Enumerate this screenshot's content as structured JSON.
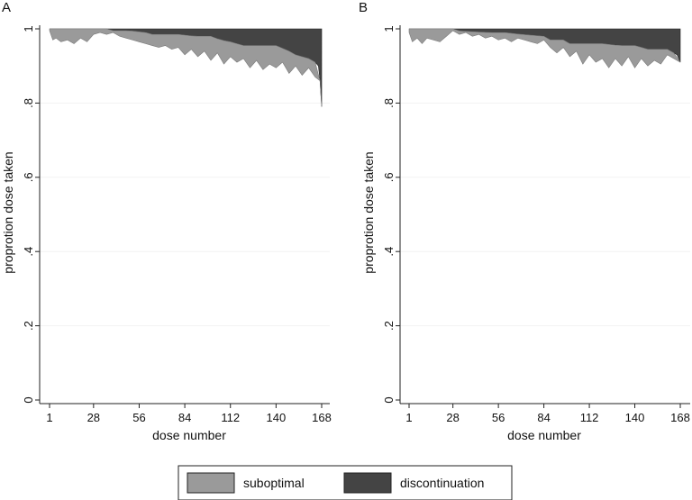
{
  "chart_data": [
    {
      "type": "area",
      "panel": "A",
      "xlabel": "dose number",
      "ylabel": "proprotion dose taken",
      "x_ticks": [
        1,
        28,
        56,
        84,
        112,
        140,
        168
      ],
      "y_ticks": [
        0,
        0.2,
        0.4,
        0.6,
        0.8,
        1
      ],
      "y_tick_labels": [
        "0",
        ".2",
        ".4",
        ".6",
        ".8",
        "1"
      ],
      "xlim": [
        1,
        168
      ],
      "ylim": [
        0,
        1
      ],
      "series": [
        {
          "name": "discontinuation",
          "x": [
            1,
            10,
            20,
            28,
            36,
            37,
            50,
            60,
            62,
            80,
            90,
            100,
            106,
            112,
            120,
            140,
            148,
            152,
            156,
            160,
            164,
            166,
            167,
            168
          ],
          "values": [
            1,
            1,
            1,
            1,
            1,
            0.995,
            0.995,
            0.99,
            0.985,
            0.985,
            0.98,
            0.98,
            0.97,
            0.965,
            0.955,
            0.955,
            0.94,
            0.93,
            0.925,
            0.92,
            0.91,
            0.9,
            0.86,
            0.79
          ]
        },
        {
          "name": "suboptimal",
          "x": [
            1,
            3,
            5,
            8,
            12,
            16,
            20,
            24,
            28,
            32,
            36,
            40,
            44,
            48,
            52,
            56,
            60,
            64,
            68,
            72,
            76,
            80,
            84,
            88,
            92,
            96,
            100,
            104,
            108,
            112,
            116,
            120,
            124,
            128,
            132,
            136,
            140,
            144,
            148,
            152,
            156,
            160,
            164,
            167,
            168
          ],
          "values": [
            0.995,
            0.97,
            0.975,
            0.965,
            0.97,
            0.96,
            0.975,
            0.965,
            0.985,
            0.99,
            0.985,
            0.99,
            0.98,
            0.975,
            0.97,
            0.965,
            0.96,
            0.955,
            0.95,
            0.955,
            0.945,
            0.95,
            0.93,
            0.945,
            0.925,
            0.94,
            0.915,
            0.935,
            0.905,
            0.925,
            0.91,
            0.92,
            0.895,
            0.915,
            0.89,
            0.905,
            0.895,
            0.91,
            0.88,
            0.9,
            0.875,
            0.895,
            0.87,
            0.88,
            0.79
          ]
        }
      ]
    },
    {
      "type": "area",
      "panel": "B",
      "xlabel": "dose number",
      "ylabel": "proprotion dose taken",
      "x_ticks": [
        1,
        28,
        56,
        84,
        112,
        140,
        168
      ],
      "y_ticks": [
        0,
        0.2,
        0.4,
        0.6,
        0.8,
        1
      ],
      "y_tick_labels": [
        "0",
        ".2",
        ".4",
        ".6",
        ".8",
        "1"
      ],
      "xlim": [
        1,
        168
      ],
      "ylim": [
        0,
        1
      ],
      "series": [
        {
          "name": "discontinuation",
          "x": [
            1,
            10,
            20,
            28,
            29,
            50,
            60,
            70,
            84,
            85,
            96,
            100,
            110,
            120,
            130,
            140,
            148,
            160,
            162,
            166,
            168
          ],
          "values": [
            1,
            1,
            1,
            1,
            0.995,
            0.99,
            0.99,
            0.985,
            0.98,
            0.97,
            0.97,
            0.96,
            0.96,
            0.96,
            0.955,
            0.955,
            0.945,
            0.945,
            0.94,
            0.93,
            0.91
          ]
        },
        {
          "name": "suboptimal",
          "x": [
            1,
            3,
            6,
            9,
            12,
            16,
            20,
            24,
            28,
            32,
            36,
            40,
            44,
            48,
            52,
            56,
            60,
            64,
            68,
            72,
            76,
            80,
            84,
            88,
            92,
            96,
            100,
            104,
            108,
            112,
            116,
            120,
            124,
            128,
            132,
            136,
            140,
            144,
            148,
            152,
            156,
            160,
            164,
            168
          ],
          "values": [
            0.99,
            0.965,
            0.975,
            0.96,
            0.975,
            0.97,
            0.965,
            0.98,
            0.995,
            0.985,
            0.99,
            0.98,
            0.985,
            0.975,
            0.98,
            0.97,
            0.975,
            0.965,
            0.975,
            0.97,
            0.965,
            0.96,
            0.97,
            0.95,
            0.935,
            0.95,
            0.925,
            0.94,
            0.905,
            0.93,
            0.91,
            0.92,
            0.895,
            0.92,
            0.9,
            0.925,
            0.895,
            0.92,
            0.9,
            0.915,
            0.905,
            0.93,
            0.92,
            0.91
          ]
        }
      ]
    }
  ],
  "legend": {
    "items": [
      {
        "label": "suboptimal",
        "color": "#9a9a9a"
      },
      {
        "label": "discontinuation",
        "color": "#444444"
      }
    ]
  },
  "colors": {
    "suboptimal": "#9a9a9a",
    "discontinuation": "#444444",
    "axis": "#222222",
    "gridline": "#f2f2f2"
  }
}
